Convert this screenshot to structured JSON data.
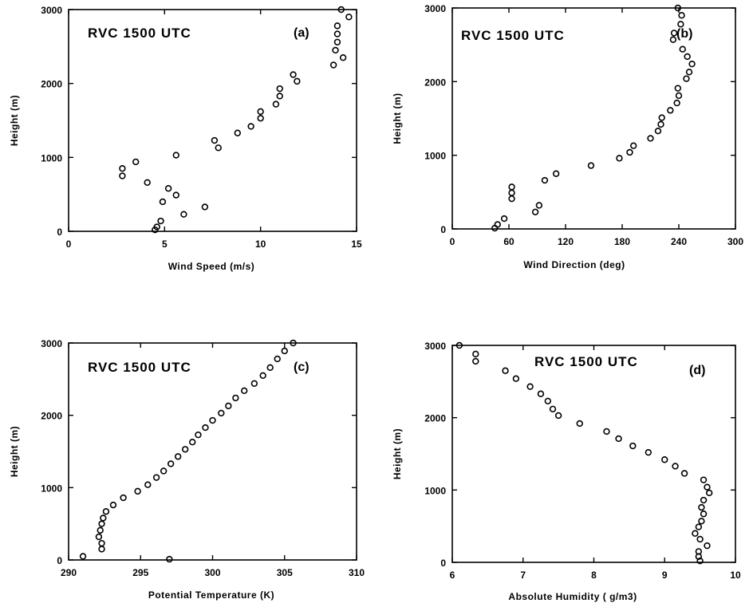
{
  "chart_data": [
    {
      "type": "scatter",
      "title": "RVC  1500  UTC",
      "panel_label": "(a)",
      "xlabel": "Wind  Speed  (m/s)",
      "ylabel": "Height  (m)",
      "xlim": [
        0,
        15
      ],
      "ylim": [
        0,
        3000
      ],
      "xticks": [
        0,
        5,
        10,
        15
      ],
      "yticks": [
        0,
        1000,
        2000,
        3000
      ],
      "grid": false,
      "points": [
        [
          4.5,
          20
        ],
        [
          4.6,
          60
        ],
        [
          4.8,
          140
        ],
        [
          6.0,
          230
        ],
        [
          7.1,
          330
        ],
        [
          4.9,
          400
        ],
        [
          5.6,
          490
        ],
        [
          5.2,
          580
        ],
        [
          4.1,
          660
        ],
        [
          2.8,
          750
        ],
        [
          2.8,
          850
        ],
        [
          3.5,
          940
        ],
        [
          5.6,
          1030
        ],
        [
          7.8,
          1130
        ],
        [
          7.6,
          1230
        ],
        [
          8.8,
          1330
        ],
        [
          9.5,
          1420
        ],
        [
          10.0,
          1530
        ],
        [
          10.0,
          1620
        ],
        [
          10.8,
          1720
        ],
        [
          11.0,
          1830
        ],
        [
          11.0,
          1930
        ],
        [
          11.9,
          2030
        ],
        [
          11.7,
          2120
        ],
        [
          13.8,
          2250
        ],
        [
          14.3,
          2350
        ],
        [
          13.9,
          2450
        ],
        [
          14.0,
          2560
        ],
        [
          14.0,
          2670
        ],
        [
          14.0,
          2780
        ],
        [
          14.6,
          2900
        ],
        [
          14.2,
          3000
        ]
      ]
    },
    {
      "type": "scatter",
      "title": "RVC  1500  UTC",
      "panel_label": "(b)",
      "xlabel": "Wind  Direction  (deg)",
      "ylabel": "Height  (m)",
      "xlim": [
        0,
        300
      ],
      "ylim": [
        0,
        3000
      ],
      "xticks": [
        0,
        60,
        120,
        180,
        240,
        300
      ],
      "yticks": [
        0,
        1000,
        2000,
        3000
      ],
      "grid": false,
      "points": [
        [
          45,
          10
        ],
        [
          48,
          60
        ],
        [
          55,
          140
        ],
        [
          88,
          230
        ],
        [
          92,
          320
        ],
        [
          63,
          410
        ],
        [
          63,
          490
        ],
        [
          63,
          570
        ],
        [
          98,
          660
        ],
        [
          110,
          750
        ],
        [
          147,
          860
        ],
        [
          177,
          960
        ],
        [
          188,
          1040
        ],
        [
          192,
          1130
        ],
        [
          210,
          1230
        ],
        [
          218,
          1330
        ],
        [
          221,
          1420
        ],
        [
          222,
          1510
        ],
        [
          231,
          1610
        ],
        [
          238,
          1710
        ],
        [
          240,
          1810
        ],
        [
          239,
          1910
        ],
        [
          248,
          2040
        ],
        [
          251,
          2130
        ],
        [
          254,
          2240
        ],
        [
          249,
          2340
        ],
        [
          244,
          2440
        ],
        [
          234,
          2570
        ],
        [
          235,
          2660
        ],
        [
          242,
          2780
        ],
        [
          243,
          2900
        ],
        [
          239,
          3000
        ]
      ]
    },
    {
      "type": "scatter",
      "title": "RVC  1500  UTC",
      "panel_label": "(c)",
      "xlabel": "Potential  Temperature  (K)",
      "ylabel": "Height  (m)",
      "xlim": [
        290,
        310
      ],
      "ylim": [
        0,
        3000
      ],
      "xticks": [
        290,
        295,
        300,
        305,
        310
      ],
      "yticks": [
        0,
        1000,
        2000,
        3000
      ],
      "grid": false,
      "points": [
        [
          291.0,
          50
        ],
        [
          297.0,
          10
        ],
        [
          292.3,
          150
        ],
        [
          292.3,
          230
        ],
        [
          292.1,
          320
        ],
        [
          292.2,
          410
        ],
        [
          292.3,
          500
        ],
        [
          292.4,
          580
        ],
        [
          292.6,
          670
        ],
        [
          293.1,
          760
        ],
        [
          293.8,
          860
        ],
        [
          294.8,
          950
        ],
        [
          295.5,
          1040
        ],
        [
          296.1,
          1140
        ],
        [
          296.6,
          1230
        ],
        [
          297.1,
          1330
        ],
        [
          297.6,
          1430
        ],
        [
          298.1,
          1530
        ],
        [
          298.6,
          1630
        ],
        [
          299.0,
          1730
        ],
        [
          299.5,
          1830
        ],
        [
          300.0,
          1930
        ],
        [
          300.6,
          2030
        ],
        [
          301.1,
          2130
        ],
        [
          301.6,
          2240
        ],
        [
          302.2,
          2340
        ],
        [
          302.9,
          2440
        ],
        [
          303.5,
          2550
        ],
        [
          304.0,
          2660
        ],
        [
          304.5,
          2780
        ],
        [
          305.0,
          2890
        ],
        [
          305.6,
          3000
        ]
      ]
    },
    {
      "type": "scatter",
      "title": "RVC  1500  UTC",
      "panel_label": "(d)",
      "xlabel": "Absolute  Humidity  (  g/m3)",
      "ylabel": "Height  (m)",
      "xlim": [
        6,
        10
      ],
      "ylim": [
        0,
        3000
      ],
      "xticks": [
        6,
        7,
        8,
        9,
        10
      ],
      "yticks": [
        0,
        1000,
        2000,
        3000
      ],
      "grid": false,
      "points": [
        [
          6.1,
          3000
        ],
        [
          6.33,
          2880
        ],
        [
          6.33,
          2780
        ],
        [
          6.75,
          2650
        ],
        [
          6.9,
          2540
        ],
        [
          7.1,
          2430
        ],
        [
          7.25,
          2330
        ],
        [
          7.35,
          2230
        ],
        [
          7.42,
          2120
        ],
        [
          7.5,
          2030
        ],
        [
          7.8,
          1920
        ],
        [
          8.18,
          1810
        ],
        [
          8.35,
          1710
        ],
        [
          8.55,
          1610
        ],
        [
          8.77,
          1520
        ],
        [
          9.0,
          1420
        ],
        [
          9.15,
          1330
        ],
        [
          9.28,
          1230
        ],
        [
          9.55,
          1140
        ],
        [
          9.6,
          1040
        ],
        [
          9.63,
          960
        ],
        [
          9.55,
          860
        ],
        [
          9.52,
          760
        ],
        [
          9.55,
          670
        ],
        [
          9.52,
          570
        ],
        [
          9.48,
          490
        ],
        [
          9.43,
          400
        ],
        [
          9.5,
          320
        ],
        [
          9.6,
          230
        ],
        [
          9.48,
          150
        ],
        [
          9.48,
          80
        ],
        [
          9.5,
          20
        ]
      ]
    }
  ]
}
